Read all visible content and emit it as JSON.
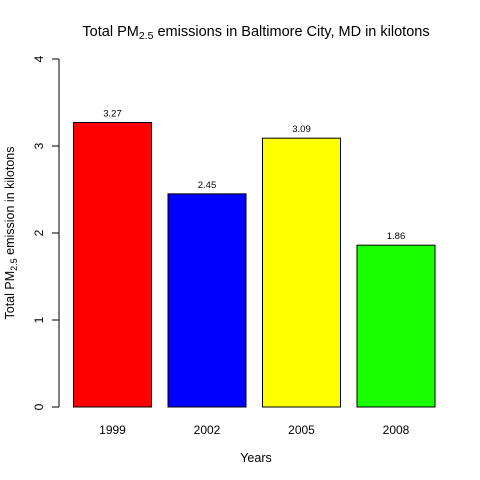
{
  "chart_data": {
    "type": "bar",
    "title": {
      "prefix": "Total PM",
      "sub": "2.5",
      "suffix": " emissions in Baltimore City, MD in kilotons"
    },
    "xlabel": "Years",
    "ylabel": {
      "prefix": "Total PM",
      "sub": "2.5",
      "suffix": " emission in kilotons"
    },
    "categories": [
      "1999",
      "2002",
      "2005",
      "2008"
    ],
    "values": [
      3.27,
      2.45,
      3.09,
      1.86
    ],
    "data_labels": [
      "3.27",
      "2.45",
      "3.09",
      "1.86"
    ],
    "colors": [
      "#ff0000",
      "#0000ff",
      "#ffff00",
      "#1aff00"
    ],
    "ylim": [
      0,
      4
    ],
    "yticks": [
      0,
      1,
      2,
      3,
      4
    ],
    "ytick_labels": [
      "0",
      "1",
      "2",
      "3",
      "4"
    ],
    "grid": false,
    "legend": "none"
  }
}
